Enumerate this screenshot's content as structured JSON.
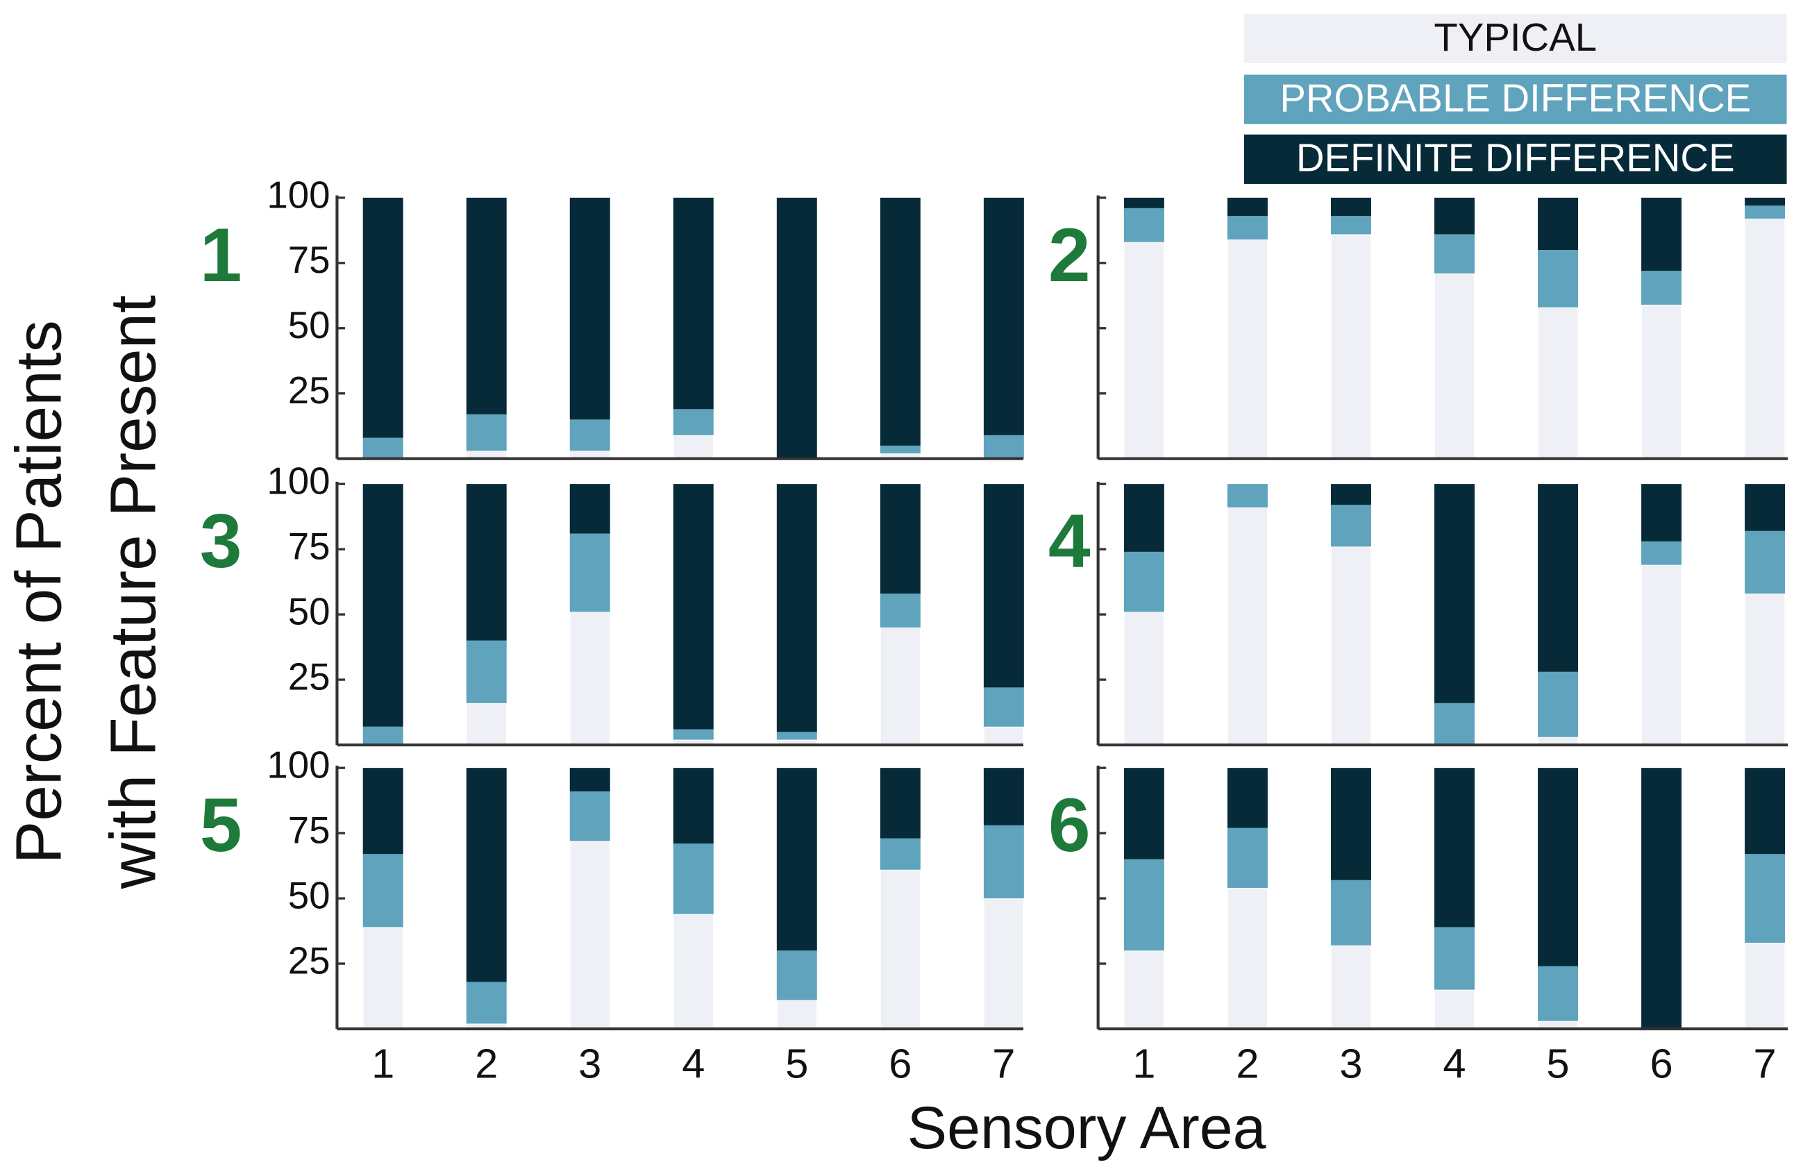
{
  "legend": [
    {
      "name": "TYPICAL",
      "color": "#eff0f6",
      "text_color": "#111111"
    },
    {
      "name": "PROBABLE DIFFERENCE",
      "color": "#5fa3bd",
      "text_color": "#ffffff"
    },
    {
      "name": "DEFINITE DIFFERENCE",
      "color": "#062a38",
      "text_color": "#ffffff"
    }
  ],
  "y_label": [
    "Percent of Patients",
    "with Feature Present"
  ],
  "x_label": "Sensory Area",
  "chart_data": [
    {
      "type": "stacked-bar",
      "title": "1",
      "ylim": [
        0,
        100
      ],
      "yticks": [
        25,
        50,
        75,
        100
      ],
      "series": [
        {
          "values": [
            0,
            3,
            3,
            9,
            0,
            2,
            0
          ]
        },
        {
          "values": [
            8,
            14,
            12,
            10,
            0,
            3,
            9
          ]
        },
        {
          "values": [
            92,
            83,
            85,
            81,
            100,
            95,
            91
          ]
        }
      ]
    },
    {
      "type": "stacked-bar",
      "title": "2",
      "ylim": [
        0,
        100
      ],
      "yticks": [
        25,
        50,
        75,
        100
      ],
      "series": [
        {
          "values": [
            83,
            84,
            86,
            71,
            58,
            59,
            92
          ]
        },
        {
          "values": [
            13,
            9,
            7,
            15,
            22,
            13,
            5
          ]
        },
        {
          "values": [
            4,
            7,
            7,
            14,
            20,
            28,
            3
          ]
        }
      ]
    },
    {
      "type": "stacked-bar",
      "title": "3",
      "ylim": [
        0,
        100
      ],
      "yticks": [
        25,
        50,
        75,
        100
      ],
      "series": [
        {
          "values": [
            0,
            16,
            51,
            2,
            2,
            45,
            7
          ]
        },
        {
          "values": [
            7,
            24,
            30,
            4,
            3,
            13,
            15
          ]
        },
        {
          "values": [
            93,
            60,
            19,
            94,
            95,
            42,
            78
          ]
        }
      ]
    },
    {
      "type": "stacked-bar",
      "title": "4",
      "ylim": [
        0,
        100
      ],
      "yticks": [
        25,
        50,
        75,
        100
      ],
      "series": [
        {
          "values": [
            51,
            91,
            76,
            0,
            3,
            69,
            58
          ]
        },
        {
          "values": [
            23,
            9,
            16,
            16,
            25,
            9,
            24
          ]
        },
        {
          "values": [
            26,
            0,
            8,
            84,
            72,
            22,
            18
          ]
        }
      ]
    },
    {
      "type": "stacked-bar",
      "title": "5",
      "ylim": [
        0,
        100
      ],
      "yticks": [
        25,
        50,
        75,
        100
      ],
      "categories": [
        "1",
        "2",
        "3",
        "4",
        "5",
        "6",
        "7"
      ],
      "series": [
        {
          "values": [
            39,
            2,
            72,
            44,
            11,
            61,
            50
          ]
        },
        {
          "values": [
            28,
            16,
            19,
            27,
            19,
            12,
            28
          ]
        },
        {
          "values": [
            33,
            82,
            9,
            29,
            70,
            27,
            22
          ]
        }
      ]
    },
    {
      "type": "stacked-bar",
      "title": "6",
      "ylim": [
        0,
        100
      ],
      "yticks": [
        25,
        50,
        75,
        100
      ],
      "categories": [
        "1",
        "2",
        "3",
        "4",
        "5",
        "6",
        "7"
      ],
      "series": [
        {
          "values": [
            30,
            54,
            32,
            15,
            3,
            0,
            33
          ]
        },
        {
          "values": [
            35,
            23,
            25,
            24,
            21,
            0,
            34
          ]
        },
        {
          "values": [
            35,
            23,
            43,
            61,
            76,
            100,
            33
          ]
        }
      ]
    }
  ]
}
